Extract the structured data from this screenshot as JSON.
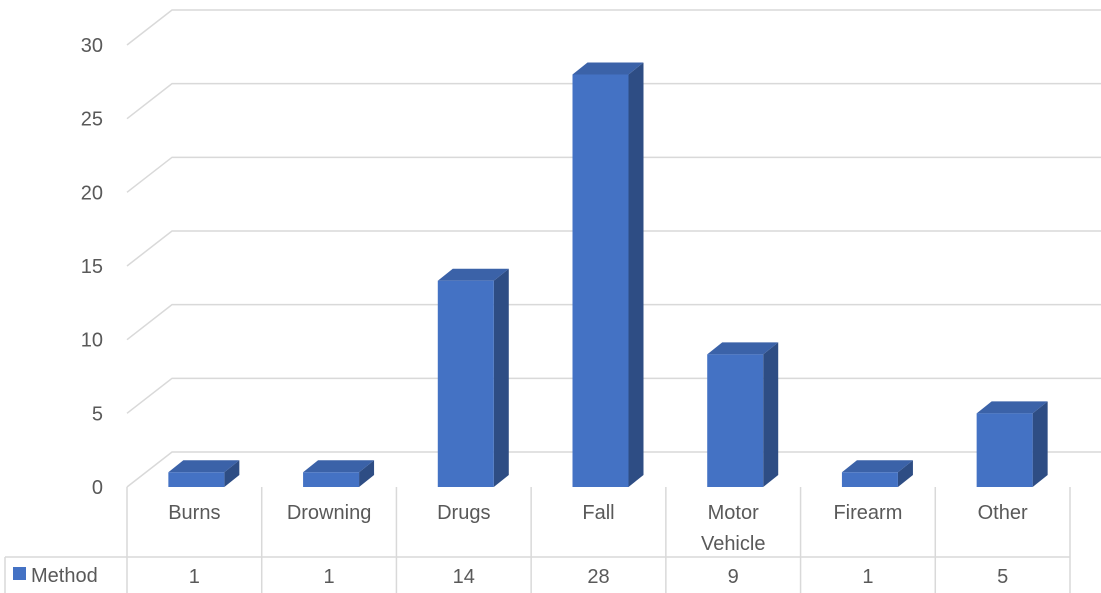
{
  "chart_data": {
    "type": "bar",
    "style": "3d-column-with-data-table",
    "categories": [
      "Burns",
      "Drowning",
      "Drugs",
      "Fall",
      "Motor Vehicle",
      "Firearm",
      "Other"
    ],
    "category_lines": [
      [
        "Burns"
      ],
      [
        "Drowning"
      ],
      [
        "Drugs"
      ],
      [
        "Fall"
      ],
      [
        "Motor",
        "Vehicle"
      ],
      [
        "Firearm"
      ],
      [
        "Other"
      ]
    ],
    "series": [
      {
        "name": "Method",
        "values": [
          1,
          1,
          14,
          28,
          9,
          1,
          5
        ]
      }
    ],
    "ylim": [
      0,
      30
    ],
    "yticks": [
      0,
      5,
      10,
      15,
      20,
      25,
      30
    ],
    "grid": true,
    "legend": "data-table-left",
    "colors": {
      "front": "#4472c4",
      "side": "#2e4d84",
      "top": "#3b62a8",
      "grid": "#d9d9d9",
      "text": "#595959"
    }
  }
}
